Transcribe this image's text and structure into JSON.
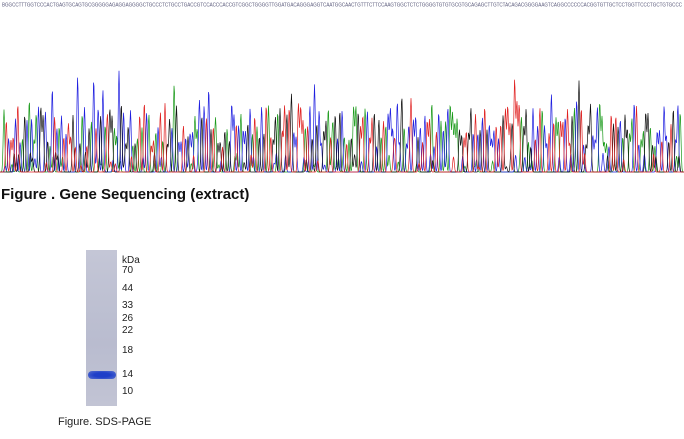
{
  "sequence": "BGGCCTTTGGTCCCACTGAGTGCAGTGCGGGGGAGAGGAGGGGCTGCCCTCTGCCTGACCGTCCACCCACCGTCGGCTGGGGTTGGATGACAGGGAGGTCAATGGCAACTGTTTCTTCCAAGTGGCTCTCTGGGGTGTGTGCGTGCAGAGCTTGTCTACAGACGGGGAAGTCAGGCCCCCCACGGTGTTGCTCCTGGTTCCCTGCTGTGCCC",
  "sequencing_caption": "Figure . Gene Sequencing (extract)",
  "gel": {
    "unit": "kDa",
    "markers": [
      70,
      44,
      33,
      26,
      22,
      18,
      14,
      10
    ]
  },
  "gel_caption": "Figure. SDS-PAGE"
}
